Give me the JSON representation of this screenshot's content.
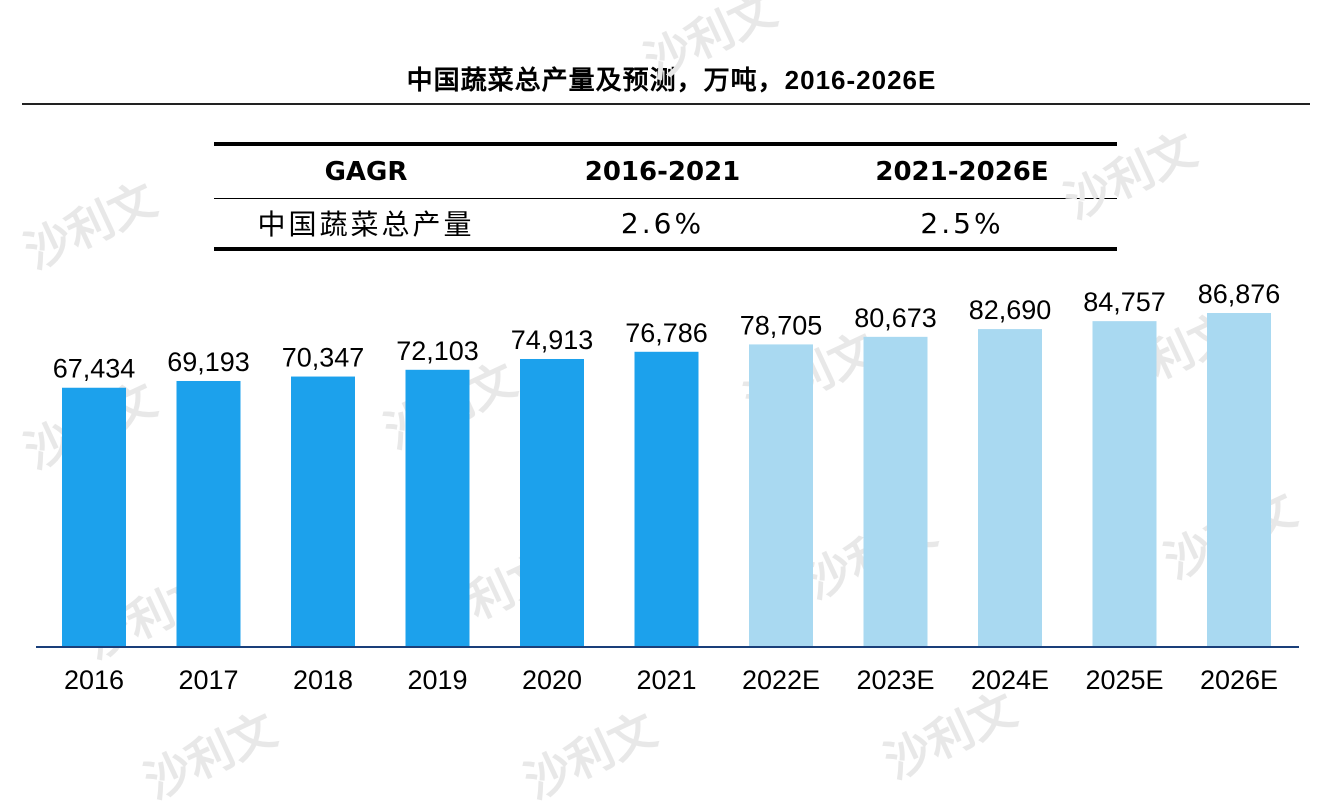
{
  "title": "中国蔬菜总产量及预测，万吨，2016-2026E",
  "cagr_table": {
    "headers": [
      "GAGR",
      "2016-2021",
      "2021-2026E"
    ],
    "row": {
      "label": "中国蔬菜总产量",
      "values": [
        "2.6%",
        "2.5%"
      ]
    }
  },
  "watermark": {
    "text": "沙利文",
    "color": "#e8e8e8"
  },
  "chart_data": {
    "type": "bar",
    "categories": [
      "2016",
      "2017",
      "2018",
      "2019",
      "2020",
      "2021",
      "2022E",
      "2023E",
      "2024E",
      "2025E",
      "2026E"
    ],
    "values": [
      67434,
      69193,
      70347,
      72103,
      74913,
      76786,
      78705,
      80673,
      82690,
      84757,
      86876
    ],
    "value_labels": [
      "67,434",
      "69,193",
      "70,347",
      "72,103",
      "74,913",
      "76,786",
      "78,705",
      "80,673",
      "82,690",
      "84,757",
      "86,876"
    ],
    "colors": {
      "historical": "#1ca1ec",
      "forecast": "#a9d9f1",
      "axis": "#1a3f7a"
    },
    "forecast_start_index": 6,
    "ylim": [
      0,
      105000
    ],
    "grid": false,
    "legend": "none"
  }
}
